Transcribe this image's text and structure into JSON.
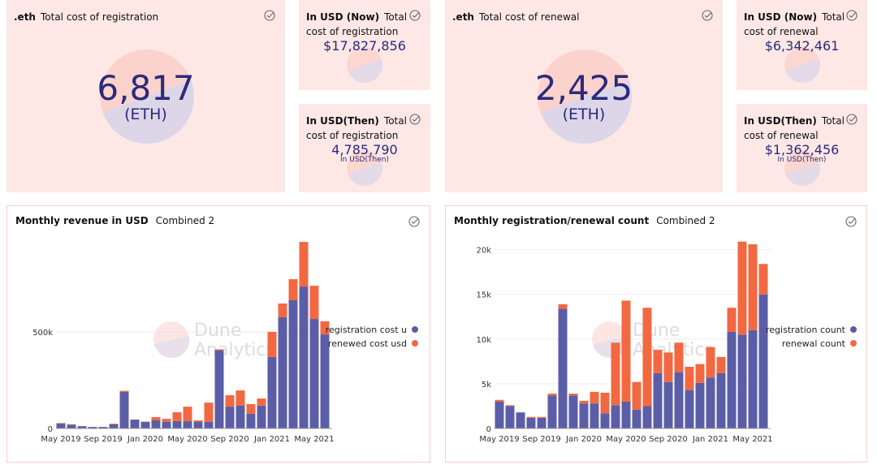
{
  "counters": [
    {
      "prefix": ".eth",
      "title": "Total cost of registration",
      "value": "6,817",
      "unit": "(ETH)"
    },
    {
      "prefix": "In USD (Now)",
      "title": "Total cost of registration",
      "value": "$17,827,856"
    },
    {
      "prefix": "In USD(Then)",
      "title": "Total cost of registration",
      "value": "4,785,790",
      "note": "In USD(Then)"
    },
    {
      "prefix": ".eth",
      "title": "Total cost of renewal",
      "value": "2,425",
      "unit": "(ETH)"
    },
    {
      "prefix": "In USD (Now)",
      "title": "Total cost of renewal",
      "value": "$6,342,461"
    },
    {
      "prefix": "In USD(Then)",
      "title": "Total cost of renewal",
      "value": "$1,362,456",
      "note": "In USD(Then)"
    }
  ],
  "watermark": [
    "Dune",
    "Analytics"
  ],
  "chart_data": [
    {
      "type": "bar",
      "stacked": true,
      "title": "Monthly revenue in USD",
      "subtitle": "Combined 2",
      "categories": [
        "May 2019",
        null,
        null,
        null,
        "Sep 2019",
        null,
        null,
        null,
        "Jan 2020",
        null,
        null,
        null,
        "May 2020",
        null,
        null,
        null,
        "Sep 2020",
        null,
        null,
        null,
        "Jan 2021",
        null,
        null,
        null,
        "May 2021",
        null
      ],
      "series": [
        {
          "name": "registration cost u",
          "color": "#5b5ea6",
          "values": [
            25000,
            20000,
            12000,
            8000,
            8000,
            22000,
            189000,
            46000,
            34000,
            42000,
            35000,
            38000,
            38000,
            35000,
            35000,
            405000,
            113000,
            118000,
            77000,
            118000,
            370000,
            576000,
            664000,
            735000,
            567000,
            487000
          ]
        },
        {
          "name": "renewed cost usd",
          "color": "#f26841",
          "values": [
            3000,
            2000,
            0,
            0,
            0,
            3000,
            6000,
            0,
            2000,
            17000,
            15000,
            46000,
            75000,
            7000,
            99000,
            5000,
            59000,
            79000,
            49000,
            37000,
            130000,
            71000,
            109000,
            231000,
            172000,
            68000
          ]
        }
      ],
      "ylim": [
        0,
        1000000
      ],
      "yticks": [
        0,
        {
          "value": 500000,
          "label": "500k"
        }
      ],
      "grid": true,
      "legend": "right"
    },
    {
      "type": "bar",
      "stacked": true,
      "title": "Monthly registration/renewal count",
      "subtitle": "Combined 2",
      "categories": [
        "May 2019",
        null,
        null,
        null,
        "Sep 2019",
        null,
        null,
        null,
        "Jan 2020",
        null,
        null,
        null,
        "May 2020",
        null,
        null,
        null,
        "Sep 2020",
        null,
        null,
        null,
        "Jan 2021",
        null,
        null,
        null,
        "May 2021",
        null
      ],
      "series": [
        {
          "name": "registration count",
          "color": "#5b5ea6",
          "values": [
            3000,
            2500,
            1800,
            1200,
            1200,
            3700,
            13400,
            3700,
            2800,
            2800,
            1700,
            2600,
            3000,
            2100,
            2500,
            6200,
            5200,
            6300,
            4300,
            5100,
            5700,
            6200,
            10800,
            10500,
            11000,
            15000
          ]
        },
        {
          "name": "renewal count",
          "color": "#f26841",
          "values": [
            200,
            100,
            0,
            100,
            100,
            200,
            500,
            200,
            300,
            1300,
            2300,
            7000,
            11300,
            3100,
            11000,
            2600,
            3300,
            3300,
            2600,
            2100,
            3400,
            1800,
            2700,
            10400,
            9600,
            3400
          ]
        }
      ],
      "ylim": [
        0,
        21600
      ],
      "yticks": [
        0,
        {
          "value": 5000,
          "label": "5k"
        },
        {
          "value": 10000,
          "label": "10k"
        },
        {
          "value": 15000,
          "label": "15k"
        },
        {
          "value": 20000,
          "label": "20k"
        }
      ],
      "grid": true,
      "legend": "right"
    }
  ]
}
